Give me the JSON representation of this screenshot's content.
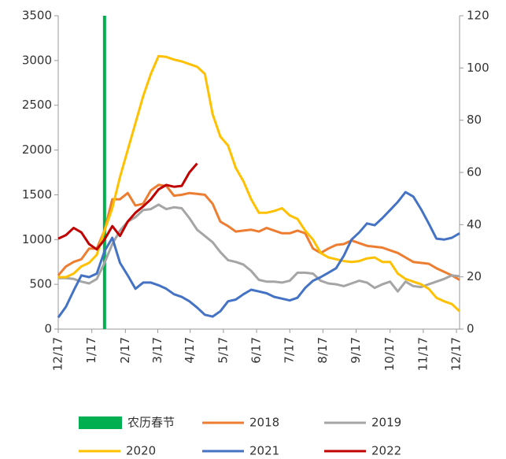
{
  "chart_data": {
    "type": "line",
    "x": [
      0,
      1,
      2,
      3,
      4,
      5,
      6,
      7,
      8,
      9,
      10,
      11,
      12,
      13,
      14,
      15,
      16,
      17,
      18,
      19,
      20,
      21,
      22,
      23,
      24,
      25,
      26,
      27,
      28,
      29,
      30,
      31,
      32,
      33,
      34,
      35,
      36,
      37,
      38,
      39,
      40,
      41,
      42,
      43,
      44,
      45,
      46,
      47,
      48,
      49,
      50,
      51,
      52
    ],
    "xlim": [
      0,
      52
    ],
    "xticks": [
      {
        "value": 0,
        "label": "12/17"
      },
      {
        "value": 4.35,
        "label": "1/17"
      },
      {
        "value": 8.7,
        "label": "2/17"
      },
      {
        "value": 12.9,
        "label": "3/17"
      },
      {
        "value": 17.1,
        "label": "4/17"
      },
      {
        "value": 21.4,
        "label": "5/17"
      },
      {
        "value": 25.7,
        "label": "6/17"
      },
      {
        "value": 30,
        "label": "7/17"
      },
      {
        "value": 34.3,
        "label": "8/17"
      },
      {
        "value": 38.6,
        "label": "9/17"
      },
      {
        "value": 43,
        "label": "10/17"
      },
      {
        "value": 47.3,
        "label": "11/17"
      },
      {
        "value": 51.6,
        "label": "12/17"
      }
    ],
    "ylim": [
      0,
      3500
    ],
    "yticks": [
      0,
      500,
      1000,
      1500,
      2000,
      2500,
      3000,
      3500
    ],
    "y2lim": [
      0,
      120
    ],
    "y2ticks": [
      0,
      20,
      40,
      60,
      80,
      100,
      120
    ],
    "marker_line": {
      "label": "农历春节",
      "x": 6,
      "color": "#00b050"
    },
    "series": [
      {
        "name": "2018",
        "color": "#ed7d31",
        "values": [
          600,
          700,
          750,
          780,
          900,
          900,
          1100,
          1450,
          1450,
          1520,
          1380,
          1400,
          1550,
          1610,
          1600,
          1490,
          1500,
          1520,
          1510,
          1500,
          1400,
          1200,
          1150,
          1090,
          1100,
          1110,
          1090,
          1130,
          1100,
          1070,
          1070,
          1100,
          1070,
          900,
          850,
          900,
          940,
          950,
          990,
          960,
          930,
          920,
          910,
          880,
          850,
          800,
          750,
          740,
          730,
          680,
          640,
          600,
          550
        ]
      },
      {
        "name": "2019",
        "color": "#a5a5a5",
        "values": [
          570,
          570,
          560,
          530,
          510,
          560,
          740,
          950,
          1100,
          1200,
          1250,
          1330,
          1340,
          1390,
          1340,
          1360,
          1350,
          1240,
          1110,
          1040,
          970,
          860,
          770,
          750,
          720,
          650,
          550,
          530,
          530,
          520,
          540,
          630,
          630,
          620,
          540,
          510,
          500,
          480,
          510,
          540,
          520,
          460,
          500,
          530,
          420,
          530,
          480,
          470,
          500,
          530,
          560,
          600,
          590
        ]
      },
      {
        "name": "2020",
        "color": "#ffc000",
        "values": [
          580,
          580,
          620,
          700,
          740,
          830,
          1100,
          1350,
          1700,
          2000,
          2300,
          2600,
          2850,
          3050,
          3040,
          3010,
          2990,
          2960,
          2930,
          2850,
          2400,
          2150,
          2050,
          1800,
          1650,
          1450,
          1300,
          1300,
          1320,
          1350,
          1270,
          1230,
          1100,
          1000,
          850,
          800,
          780,
          760,
          750,
          760,
          790,
          800,
          750,
          750,
          620,
          560,
          530,
          500,
          450,
          350,
          310,
          280,
          200
        ]
      },
      {
        "name": "2021",
        "color": "#4472c4",
        "values": [
          130,
          250,
          430,
          600,
          580,
          620,
          870,
          1020,
          740,
          600,
          450,
          520,
          520,
          490,
          450,
          390,
          360,
          310,
          240,
          160,
          140,
          200,
          310,
          330,
          390,
          440,
          420,
          400,
          360,
          340,
          320,
          350,
          460,
          540,
          580,
          630,
          680,
          820,
          1000,
          1080,
          1180,
          1160,
          1240,
          1330,
          1420,
          1530,
          1480,
          1340,
          1180,
          1010,
          1000,
          1020,
          1070
        ]
      },
      {
        "name": "2022",
        "color": "#c00000",
        "values": [
          1010,
          1050,
          1130,
          1080,
          950,
          890,
          1000,
          1150,
          1040,
          1200,
          1300,
          1370,
          1450,
          1560,
          1610,
          1590,
          1600,
          1750,
          1850,
          null,
          null,
          null,
          null,
          null,
          null,
          null,
          null,
          null,
          null,
          null,
          null,
          null,
          null,
          null,
          null,
          null,
          null,
          null,
          null,
          null,
          null,
          null,
          null,
          null,
          null,
          null,
          null,
          null,
          null,
          null,
          null,
          null,
          null
        ]
      }
    ]
  }
}
